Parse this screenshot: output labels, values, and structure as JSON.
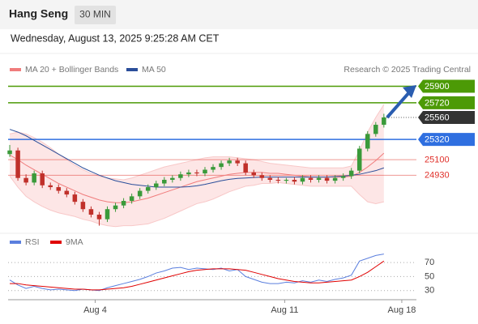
{
  "chart_data": {
    "type": "candlestick",
    "title": "Hang Seng",
    "interval": "30 MIN",
    "timestamp": "Wednesday, August 13, 2025 9:25:28 AM CET",
    "source": "Research © 2025 Trading Central",
    "xlim": [
      -1,
      50
    ],
    "xticks": [
      {
        "value": 10.5,
        "label": "Aug 4"
      },
      {
        "value": 33.8,
        "label": "Aug 11"
      },
      {
        "value": 48.2,
        "label": "Aug 18"
      }
    ],
    "ylim": [
      24350,
      26050
    ],
    "candles": {
      "up_color": "#3a9a3a",
      "down_color": "#c0302a",
      "open": [
        25160,
        25200,
        24900,
        24850,
        24950,
        24820,
        24800,
        24760,
        24720,
        24640,
        24560,
        24500,
        24450,
        24560,
        24600,
        24650,
        24700,
        24760,
        24800,
        24840,
        24880,
        24900,
        24940,
        24960,
        24950,
        24990,
        25020,
        25060,
        25090,
        25060,
        24960,
        24930,
        24900,
        24880,
        24870,
        24880,
        24860,
        24900,
        24880,
        24900,
        24870,
        24900,
        24920,
        24980,
        25220,
        25380,
        25480
      ],
      "high": [
        25260,
        25230,
        24940,
        24980,
        24980,
        24850,
        24830,
        24790,
        24750,
        24670,
        24590,
        24530,
        24590,
        24630,
        24680,
        24730,
        24790,
        24830,
        24870,
        24910,
        24930,
        24970,
        24990,
        24990,
        25020,
        25050,
        25090,
        25120,
        25120,
        25090,
        24990,
        24960,
        24930,
        24910,
        24900,
        24910,
        24930,
        24930,
        24930,
        24930,
        24930,
        24950,
        25010,
        25250,
        25410,
        25510,
        25600
      ],
      "low": [
        25130,
        24870,
        24820,
        24820,
        24790,
        24770,
        24730,
        24690,
        24610,
        24530,
        24470,
        24380,
        24420,
        24530,
        24570,
        24620,
        24670,
        24730,
        24770,
        24810,
        24850,
        24870,
        24910,
        24920,
        24920,
        24960,
        24990,
        25030,
        25030,
        24930,
        24900,
        24870,
        24850,
        24840,
        24840,
        24830,
        24830,
        24850,
        24850,
        24840,
        24840,
        24870,
        24890,
        24950,
        25190,
        25350,
        25450
      ],
      "close": [
        25200,
        24900,
        24850,
        24950,
        24820,
        24800,
        24760,
        24720,
        24640,
        24560,
        24500,
        24450,
        24560,
        24600,
        24650,
        24700,
        24760,
        24800,
        24840,
        24880,
        24900,
        24940,
        24960,
        24950,
        24990,
        25020,
        25060,
        25090,
        25060,
        24960,
        24930,
        24900,
        24880,
        24870,
        24880,
        24860,
        24900,
        24880,
        24900,
        24870,
        24900,
        24920,
        24980,
        25220,
        25380,
        25480,
        25560
      ]
    },
    "series": [
      {
        "name": "MA 20 + Bollinger Bands",
        "color": "#f07c7c",
        "band_color": "#fde0e0",
        "values": [
          25150,
          25100,
          25040,
          24990,
          24940,
          24890,
          24840,
          24800,
          24760,
          24720,
          24690,
          24660,
          24640,
          24630,
          24630,
          24640,
          24660,
          24680,
          24710,
          24740,
          24770,
          24800,
          24830,
          24860,
          24880,
          24900,
          24920,
          24940,
          24950,
          24960,
          24960,
          24960,
          24950,
          24950,
          24940,
          24930,
          24920,
          24910,
          24910,
          24910,
          24910,
          24910,
          24920,
          24960,
          25020,
          25090,
          25170
        ],
        "upper": [
          25380,
          25400,
          25380,
          25340,
          25290,
          25230,
          25160,
          25100,
          25040,
          24990,
          24950,
          24920,
          24900,
          24890,
          24880,
          24900,
          24930,
          24960,
          24990,
          25020,
          25040,
          25060,
          25080,
          25100,
          25120,
          25130,
          25130,
          25130,
          25120,
          25110,
          25100,
          25080,
          25060,
          25050,
          25040,
          25030,
          25020,
          25010,
          25010,
          25010,
          25010,
          25010,
          25030,
          25200,
          25400,
          25560,
          25700
        ],
        "lower": [
          24920,
          24800,
          24700,
          24640,
          24590,
          24550,
          24520,
          24500,
          24480,
          24450,
          24430,
          24400,
          24380,
          24370,
          24380,
          24380,
          24390,
          24400,
          24430,
          24460,
          24500,
          24540,
          24580,
          24620,
          24640,
          24670,
          24710,
          24750,
          24780,
          24810,
          24820,
          24840,
          24840,
          24850,
          24840,
          24830,
          24820,
          24810,
          24810,
          24810,
          24810,
          24810,
          24810,
          24720,
          24640,
          24620,
          24640
        ]
      },
      {
        "name": "MA 50",
        "color": "#2a4e9a",
        "values": [
          25430,
          25400,
          25360,
          25310,
          25260,
          25210,
          25160,
          25110,
          25060,
          25010,
          24970,
          24930,
          24900,
          24870,
          24850,
          24830,
          24820,
          24810,
          24800,
          24800,
          24800,
          24800,
          24805,
          24815,
          24830,
          24850,
          24870,
          24885,
          24895,
          24900,
          24905,
          24910,
          24910,
          24910,
          24910,
          24910,
          24910,
          24910,
          24910,
          24910,
          24915,
          24920,
          24930,
          24940,
          24960,
          24980,
          25010
        ]
      }
    ],
    "levels": [
      {
        "value": 25900,
        "color": "#4c9a06",
        "boxed": true
      },
      {
        "value": 25720,
        "color": "#4c9a06",
        "boxed": true
      },
      {
        "value": 25560,
        "color": "#333333",
        "boxed": true
      },
      {
        "value": 25320,
        "color": "#2f6fe0",
        "boxed": true
      },
      {
        "value": 25100,
        "color": "#e0302a",
        "boxed": false
      },
      {
        "value": 24930,
        "color": "#e0302a",
        "boxed": false
      }
    ],
    "rsi": {
      "ylim": [
        17,
        92
      ],
      "yticks": [
        30,
        50,
        70
      ],
      "series": [
        {
          "name": "RSI",
          "color": "#5b7fde",
          "values": [
            45,
            38,
            33,
            36,
            33,
            31,
            32,
            31,
            30,
            32,
            31,
            30,
            34,
            37,
            40,
            43,
            46,
            50,
            55,
            58,
            62,
            63,
            60,
            62,
            61,
            60,
            62,
            58,
            60,
            50,
            46,
            42,
            40,
            40,
            42,
            41,
            44,
            42,
            45,
            43,
            46,
            48,
            52,
            72,
            76,
            80,
            82
          ]
        },
        {
          "name": "9MA",
          "color": "#e00000",
          "values": [
            40,
            40,
            38,
            37,
            36,
            35,
            34,
            33,
            32,
            32,
            31,
            31,
            32,
            33,
            34,
            36,
            39,
            42,
            45,
            48,
            51,
            54,
            57,
            59,
            60,
            61,
            61,
            61,
            60,
            59,
            56,
            53,
            50,
            47,
            45,
            43,
            42,
            41,
            41,
            42,
            43,
            44,
            45,
            50,
            56,
            64,
            72
          ]
        }
      ]
    }
  }
}
